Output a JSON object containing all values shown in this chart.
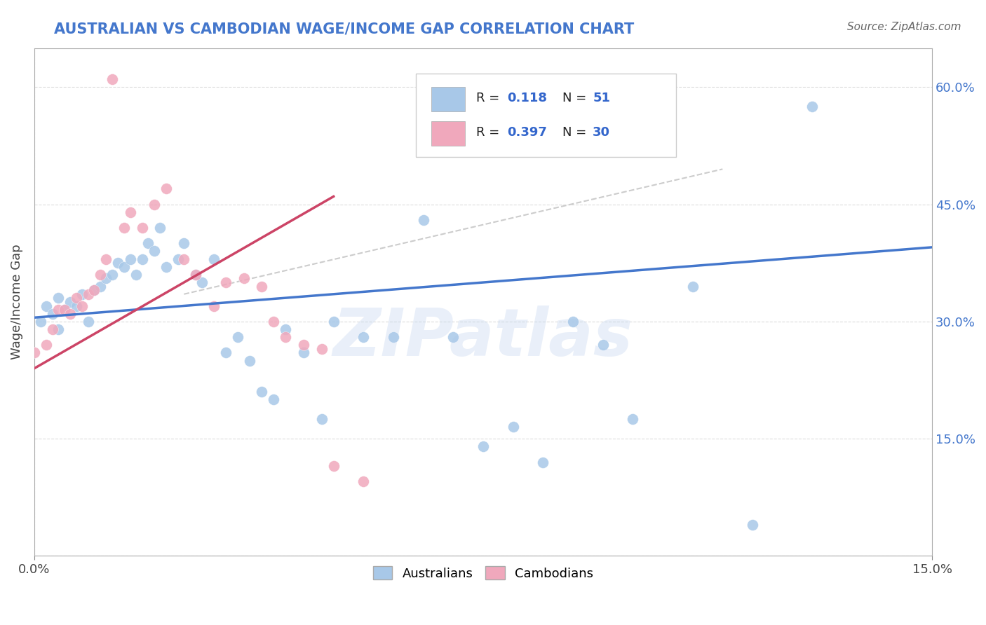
{
  "title": "AUSTRALIAN VS CAMBODIAN WAGE/INCOME GAP CORRELATION CHART",
  "source": "Source: ZipAtlas.com",
  "ylabel": "Wage/Income Gap",
  "xlim": [
    0.0,
    0.15
  ],
  "ylim": [
    0.0,
    0.65
  ],
  "blue_color": "#A8C8E8",
  "pink_color": "#F0A8BC",
  "trendline_blue": "#4477CC",
  "trendline_pink": "#CC4466",
  "trendline_dashed": "#CCCCCC",
  "australians_x": [
    0.001,
    0.002,
    0.003,
    0.004,
    0.004,
    0.005,
    0.006,
    0.007,
    0.008,
    0.009,
    0.01,
    0.011,
    0.012,
    0.013,
    0.014,
    0.015,
    0.016,
    0.017,
    0.018,
    0.019,
    0.02,
    0.021,
    0.022,
    0.024,
    0.025,
    0.027,
    0.028,
    0.03,
    0.032,
    0.034,
    0.036,
    0.038,
    0.04,
    0.042,
    0.045,
    0.048,
    0.05,
    0.055,
    0.06,
    0.065,
    0.07,
    0.075,
    0.08,
    0.085,
    0.09,
    0.095,
    0.1,
    0.11,
    0.12,
    0.13,
    0.085
  ],
  "australians_y": [
    0.3,
    0.32,
    0.31,
    0.33,
    0.29,
    0.315,
    0.325,
    0.32,
    0.335,
    0.3,
    0.34,
    0.345,
    0.355,
    0.36,
    0.375,
    0.37,
    0.38,
    0.36,
    0.38,
    0.4,
    0.39,
    0.42,
    0.37,
    0.38,
    0.4,
    0.36,
    0.35,
    0.38,
    0.26,
    0.28,
    0.25,
    0.21,
    0.2,
    0.29,
    0.26,
    0.175,
    0.3,
    0.28,
    0.28,
    0.43,
    0.28,
    0.14,
    0.165,
    0.12,
    0.3,
    0.27,
    0.175,
    0.345,
    0.04,
    0.575,
    0.565
  ],
  "cambodians_x": [
    0.0,
    0.002,
    0.003,
    0.004,
    0.005,
    0.006,
    0.007,
    0.008,
    0.009,
    0.01,
    0.011,
    0.012,
    0.013,
    0.015,
    0.016,
    0.018,
    0.02,
    0.022,
    0.025,
    0.027,
    0.03,
    0.032,
    0.035,
    0.038,
    0.04,
    0.042,
    0.045,
    0.048,
    0.05,
    0.055
  ],
  "cambodians_y": [
    0.26,
    0.27,
    0.29,
    0.315,
    0.315,
    0.31,
    0.33,
    0.32,
    0.335,
    0.34,
    0.36,
    0.38,
    0.61,
    0.42,
    0.44,
    0.42,
    0.45,
    0.47,
    0.38,
    0.36,
    0.32,
    0.35,
    0.355,
    0.345,
    0.3,
    0.28,
    0.27,
    0.265,
    0.115,
    0.095
  ],
  "aus_trend_x0": 0.0,
  "aus_trend_x1": 0.15,
  "aus_trend_y0": 0.305,
  "aus_trend_y1": 0.395,
  "cam_trend_x0": 0.0,
  "cam_trend_x1": 0.05,
  "cam_trend_y0": 0.24,
  "cam_trend_y1": 0.46,
  "dash_trend_x0": 0.025,
  "dash_trend_x1": 0.115,
  "dash_trend_y0": 0.335,
  "dash_trend_y1": 0.495
}
